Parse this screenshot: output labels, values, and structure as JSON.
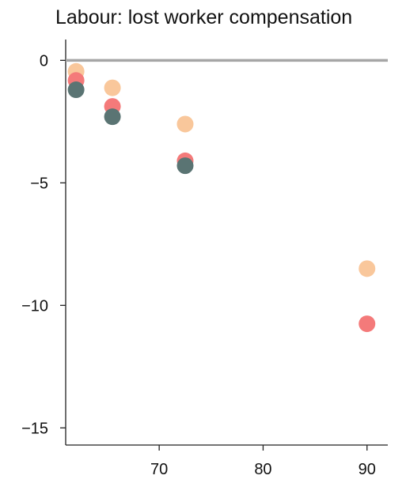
{
  "chart_data": {
    "type": "scatter",
    "title": "Labour: lost worker compensation",
    "xlabel": "",
    "ylabel": "",
    "xlim": [
      61,
      92
    ],
    "ylim": [
      -15.7,
      0.85
    ],
    "xticks": [
      70,
      80,
      90
    ],
    "yticks": [
      0,
      -5,
      -10,
      -15
    ],
    "xtick_labels": [
      "70",
      "80",
      "90"
    ],
    "ytick_labels": [
      "0",
      "−5",
      "−10",
      "−15"
    ],
    "reference_line": {
      "y": 0,
      "color": "#a6a6a6"
    },
    "grid": false,
    "series": [
      {
        "color": "#f9c79b",
        "points": [
          {
            "x": 62.0,
            "y": -0.45
          },
          {
            "x": 65.5,
            "y": -1.12
          },
          {
            "x": 72.5,
            "y": -2.6
          },
          {
            "x": 90.0,
            "y": -8.5
          }
        ]
      },
      {
        "color": "#f47a7a",
        "points": [
          {
            "x": 62.0,
            "y": -0.82
          },
          {
            "x": 65.5,
            "y": -1.88
          },
          {
            "x": 72.5,
            "y": -4.1
          },
          {
            "x": 90.0,
            "y": -10.75
          }
        ]
      },
      {
        "color": "#5a7473",
        "points": [
          {
            "x": 62.0,
            "y": -1.2
          },
          {
            "x": 65.5,
            "y": -2.3
          },
          {
            "x": 72.5,
            "y": -4.3
          }
        ]
      }
    ]
  }
}
